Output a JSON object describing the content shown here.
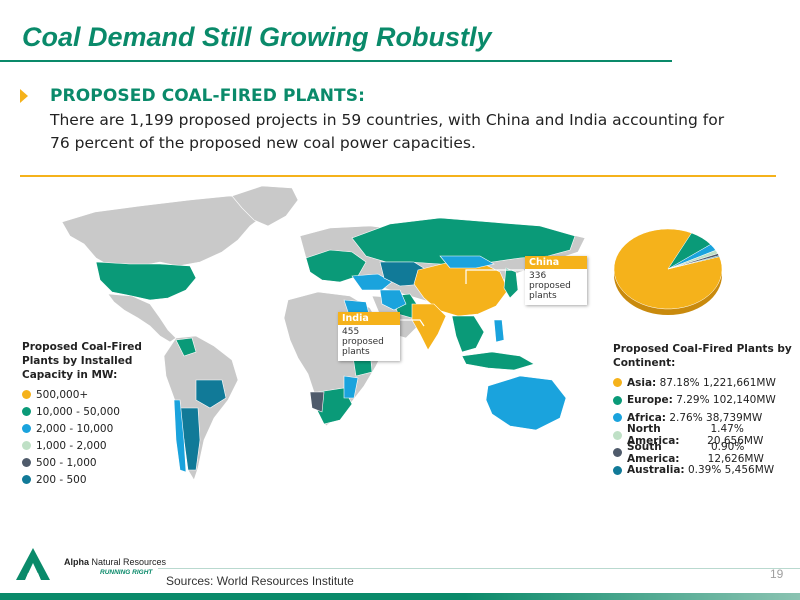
{
  "slide": {
    "title": "Coal Demand Still Growing Robustly",
    "page_number": "19",
    "sources": "Sources: World Resources Institute"
  },
  "section": {
    "heading": "PROPOSED COAL-FIRED PLANTS:",
    "body": "There are 1,199 proposed projects in 59 countries, with China and India accounting for 76 percent of the proposed new coal power capacities."
  },
  "legend_capacity": {
    "title": "Proposed Coal-Fired Plants by Installed Capacity in MW:",
    "items": [
      {
        "label": "500,000+",
        "color": "#f5b21b"
      },
      {
        "label": "10,000 - 50,000",
        "color": "#0a9a78"
      },
      {
        "label": "2,000 - 10,000",
        "color": "#1aa3dd"
      },
      {
        "label": "1,000 - 2,000",
        "color": "#bfe0c6"
      },
      {
        "label": "500 - 1,000",
        "color": "#4f5b6b"
      },
      {
        "label": "200 - 500",
        "color": "#117a98"
      }
    ]
  },
  "legend_continent": {
    "title": "Proposed Coal-Fired Plants by Continent:",
    "items": [
      {
        "name": "Asia:",
        "value": "87.18% 1,221,661MW",
        "share": 87.18,
        "color": "#f5b21b"
      },
      {
        "name": "Europe:",
        "value": "7.29% 102,140MW",
        "share": 7.29,
        "color": "#0a9a78"
      },
      {
        "name": "Africa:",
        "value": "2.76% 38,739MW",
        "share": 2.76,
        "color": "#1aa3dd"
      },
      {
        "name": "North America:",
        "value": "1.47% 20,656MW",
        "share": 1.47,
        "color": "#bfe0c6"
      },
      {
        "name": "South America:",
        "value": "0.90% 12,626MW",
        "share": 0.9,
        "color": "#4f5b6b"
      },
      {
        "name": "Australia:",
        "value": "0.39% 5,456MW",
        "share": 0.39,
        "color": "#117a98"
      }
    ]
  },
  "callouts": {
    "china": {
      "country": "China",
      "count": "336",
      "unit1": "proposed",
      "unit2": "plants"
    },
    "india": {
      "country": "India",
      "count": "455",
      "unit1": "proposed",
      "unit2": "plants"
    }
  },
  "brand": {
    "name_bold": "Alpha",
    "name_rest": " Natural Resources",
    "tagline": "RUNNING RIGHT"
  },
  "colors": {
    "accent_green": "#0a8a6a",
    "accent_gold": "#f5b21b",
    "land_gray": "#c9c9c9"
  }
}
